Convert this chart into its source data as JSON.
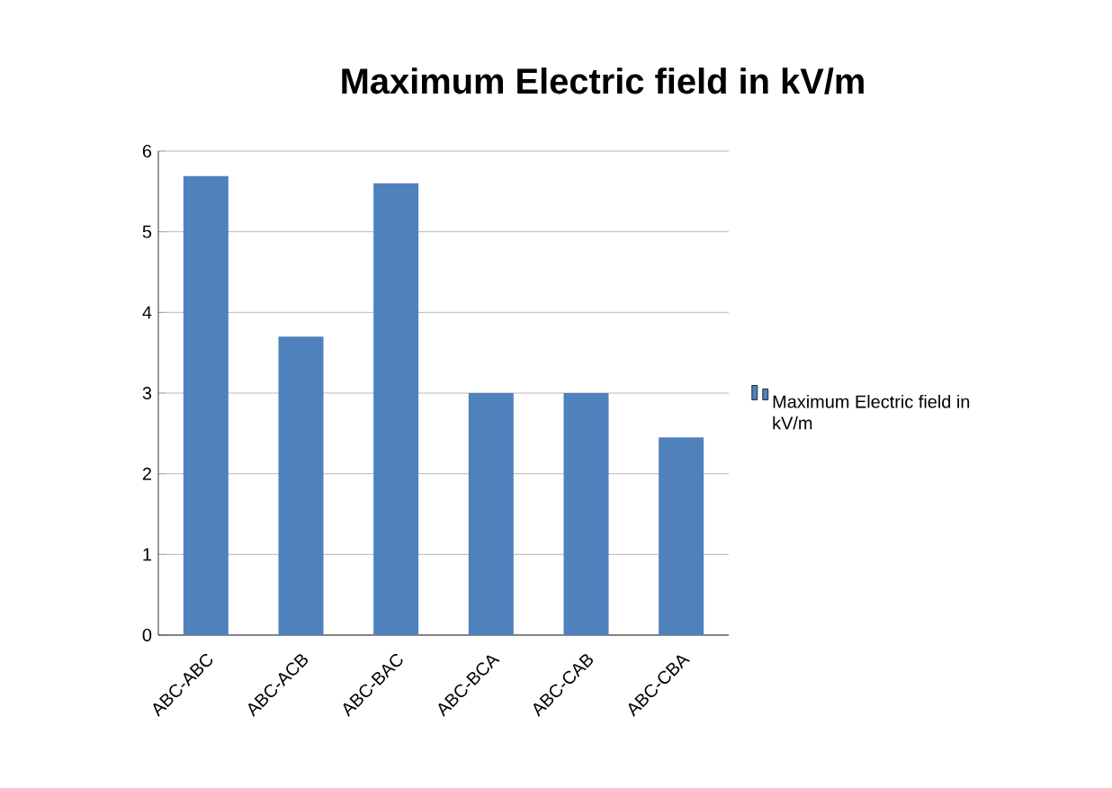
{
  "chart_data": {
    "type": "bar",
    "title": "Maximum Electric field in kV/m",
    "categories": [
      "ABC-ABC",
      "ABC-ACB",
      "ABC-BAC",
      "ABC-BCA",
      "ABC-CAB",
      "ABC-CBA"
    ],
    "series": [
      {
        "name": "Maximum Electric field in kV/m",
        "color": "#4f81bd",
        "values": [
          5.69,
          3.7,
          5.6,
          3.0,
          3.0,
          2.45
        ]
      }
    ],
    "ylim": [
      0,
      6
    ],
    "yticks": [
      0,
      1,
      2,
      3,
      4,
      5,
      6
    ],
    "grid": "y",
    "legend": "right"
  }
}
